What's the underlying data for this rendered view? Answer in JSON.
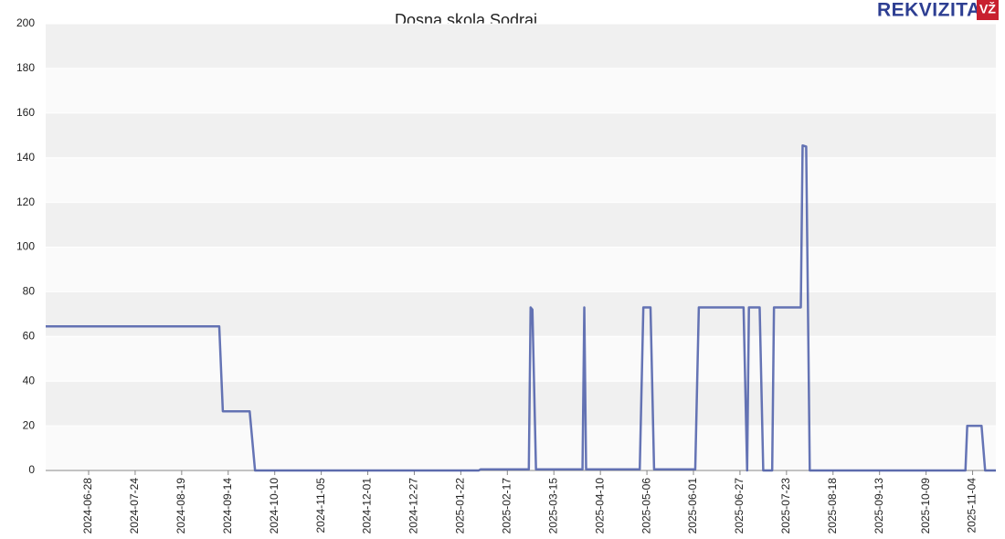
{
  "chart_data": {
    "type": "line",
    "title": "Dosna skola Sodrai",
    "logo": {
      "brand": "REKVIZITAI",
      "badge": "VŽ"
    },
    "x": [
      "2024-06-04",
      "2024-09-09",
      "2024-09-11",
      "2024-09-26",
      "2024-09-29",
      "2025-02-01",
      "2025-02-02",
      "2025-03-01",
      "2025-03-02",
      "2025-03-03",
      "2025-03-05",
      "2025-03-31",
      "2025-04-01",
      "2025-04-02",
      "2025-05-02",
      "2025-05-04",
      "2025-05-08",
      "2025-05-10",
      "2025-06-02",
      "2025-06-04",
      "2025-06-29",
      "2025-07-01",
      "2025-07-02",
      "2025-07-08",
      "2025-07-10",
      "2025-07-15",
      "2025-07-16",
      "2025-07-31",
      "2025-08-01",
      "2025-08-03",
      "2025-08-05",
      "2025-10-31",
      "2025-11-01",
      "2025-11-09",
      "2025-11-11",
      "2025-11-17"
    ],
    "values": [
      64.5,
      64.5,
      26.5,
      26.5,
      0,
      0,
      0.5,
      0.5,
      73,
      72,
      0.5,
      0.5,
      73,
      0.5,
      0.5,
      73,
      73,
      0.5,
      0.5,
      73,
      73,
      0,
      73,
      73,
      0,
      0,
      73,
      73,
      145.5,
      145,
      0,
      0,
      20,
      20,
      0,
      0
    ],
    "color": "#4a5ca8",
    "xlim": [
      "2024-06-04",
      "2025-11-17"
    ],
    "xticks": [
      "2024-06-28",
      "2024-07-24",
      "2024-08-19",
      "2024-09-14",
      "2024-10-10",
      "2024-11-05",
      "2024-12-01",
      "2024-12-27",
      "2025-01-22",
      "2025-02-17",
      "2025-03-15",
      "2025-04-10",
      "2025-05-06",
      "2025-06-01",
      "2025-06-27",
      "2025-07-23",
      "2025-08-18",
      "2025-09-13",
      "2025-10-09",
      "2025-11-04"
    ],
    "ylim": [
      0,
      200
    ],
    "yticks": [
      0,
      20,
      40,
      60,
      80,
      100,
      120,
      140,
      160,
      180,
      200
    ],
    "grid": true
  }
}
